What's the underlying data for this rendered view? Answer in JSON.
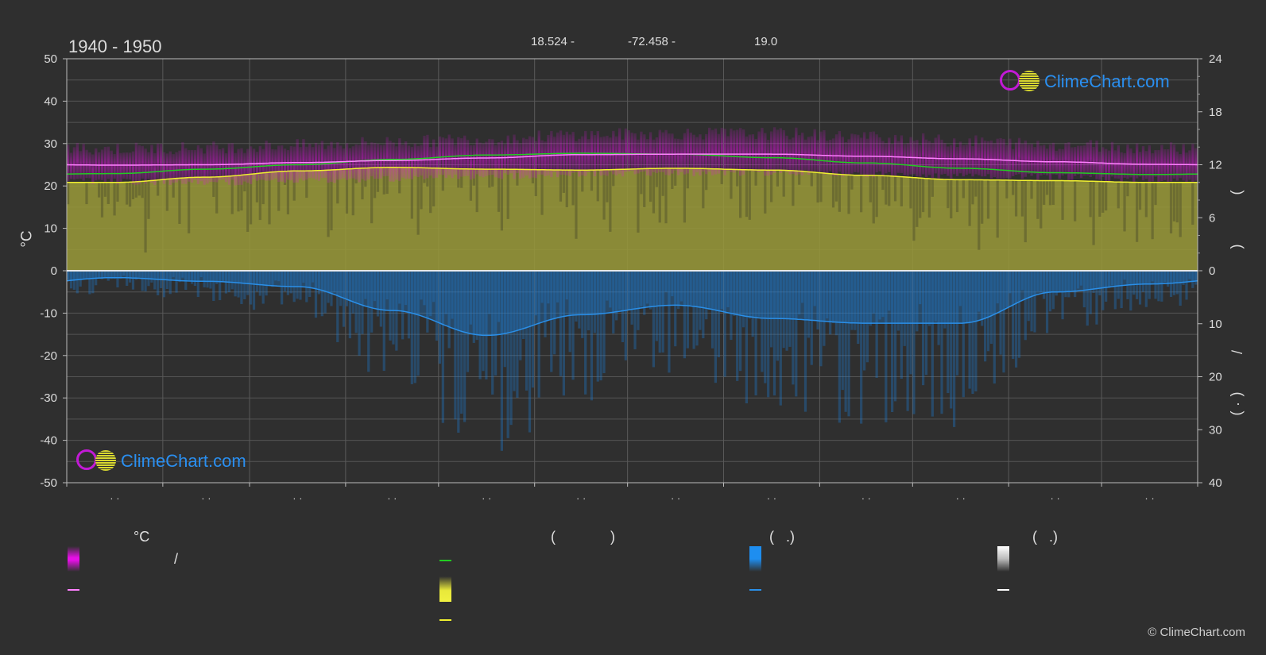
{
  "header": {
    "period": "1940 - 1950",
    "lat": "18.524 -",
    "lon": "-72.458 -",
    "elev": "19.0"
  },
  "logo_text": "ClimeChart.com",
  "copyright": "© ClimeChart.com",
  "axis_left_unit": "°C",
  "right_axis_labels": {
    "sun_paren_open": "(",
    "sun_paren_close": ")",
    "rain_slash": "/",
    "rain_paren_open": "(",
    "rain_dot": "·",
    "rain_paren_close": ")"
  },
  "x_tick_labels": [
    "· ·",
    "· ·",
    "· ·",
    "· ·",
    "· ·",
    "· ·",
    "· ·",
    "· ·",
    "· ·",
    "· ·",
    "· ·",
    "· ·"
  ],
  "legend": {
    "col1_head": "°C",
    "col1_slash": "/",
    "col2_head_open": "(",
    "col2_head_close": ")",
    "col3_head": "(   .)",
    "col4_head": "(   .)"
  },
  "colors": {
    "background": "#2f2f2f",
    "temp_range": "#e610e6",
    "mean_temp": "#ff80ff",
    "daylight": "#22cc22",
    "sunshine_fill": "#9a9a38",
    "sunshine_line": "#f0f030",
    "precip": "#1e7fd6",
    "precip_line": "#2a8fe8",
    "logo": "#1e90ff"
  },
  "chart_data": {
    "type": "area",
    "xlim": [
      0,
      365
    ],
    "months": 12,
    "left_axis": {
      "unit": "°C",
      "ylim": [
        -50,
        50
      ],
      "ticks": [
        50,
        40,
        30,
        20,
        10,
        0,
        -10,
        -20,
        -30,
        -40,
        -50
      ]
    },
    "right_axis": {
      "upper": {
        "ticks": [
          24,
          18,
          12,
          6,
          0
        ],
        "range": [
          0,
          24
        ]
      },
      "lower": {
        "ticks": [
          0,
          10,
          20,
          30,
          40
        ],
        "range": [
          0,
          40
        ]
      }
    },
    "grid": true,
    "series": [
      {
        "key": "temp_max",
        "values": [
          28.2,
          28.5,
          29.0,
          29.8,
          30.5,
          31.5,
          31.8,
          31.8,
          31.0,
          30.0,
          29.2,
          28.5
        ]
      },
      {
        "key": "temp_min",
        "values": [
          21.8,
          21.5,
          22.0,
          22.5,
          23.0,
          23.5,
          23.8,
          23.8,
          23.5,
          23.0,
          22.8,
          22.2
        ]
      },
      {
        "key": "mean_temp",
        "values": [
          24.9,
          25.0,
          25.5,
          26.0,
          26.6,
          27.4,
          27.5,
          27.5,
          27.0,
          26.4,
          25.7,
          25.1
        ]
      },
      {
        "key": "daylight_hours",
        "values": [
          11.0,
          11.5,
          12.0,
          12.6,
          13.1,
          13.3,
          13.2,
          12.8,
          12.2,
          11.6,
          11.1,
          10.9
        ]
      },
      {
        "key": "sunshine_hours",
        "values": [
          10.0,
          10.6,
          11.3,
          11.7,
          11.5,
          11.4,
          11.6,
          11.4,
          10.8,
          10.3,
          10.2,
          10.0
        ]
      },
      {
        "key": "precip_mm",
        "values": [
          1.3,
          2.0,
          3.0,
          7.5,
          12.2,
          8.3,
          6.5,
          9.0,
          9.9,
          9.9,
          4.0,
          2.5
        ]
      }
    ]
  }
}
